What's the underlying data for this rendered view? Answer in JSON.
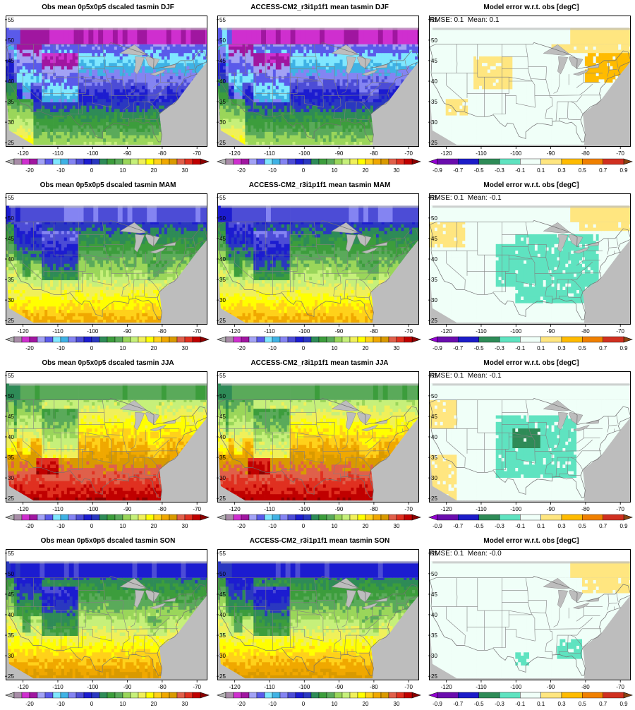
{
  "figure": {
    "rows": [
      {
        "season": "DJF",
        "obs_title": "Obs mean 0p5x0p5 dscaled tasmin DJF",
        "model_title": "ACCESS-CM2_r3i1p1f1 mean tasmin DJF",
        "error_title": "Model error w.r.t. obs [degC]",
        "rmse_label": "RMSE: 0.1",
        "mean_label": "Mean: 0.1"
      },
      {
        "season": "MAM",
        "obs_title": "Obs mean 0p5x0p5 dscaled tasmin MAM",
        "model_title": "ACCESS-CM2_r3i1p1f1 mean tasmin MAM",
        "error_title": "Model error w.r.t. obs [degC]",
        "rmse_label": "RMSE: 0.1",
        "mean_label": "Mean: -0.1"
      },
      {
        "season": "JJA",
        "obs_title": "Obs mean 0p5x0p5 dscaled tasmin JJA",
        "model_title": "ACCESS-CM2_r3i1p1f1 mean tasmin JJA",
        "error_title": "Model error w.r.t. obs [degC]",
        "rmse_label": "RMSE: 0.1",
        "mean_label": "Mean: -0.1"
      },
      {
        "season": "SON",
        "obs_title": "Obs mean 0p5x0p5 dscaled tasmin SON",
        "model_title": "ACCESS-CM2_r3i1p1f1 mean tasmin SON",
        "error_title": "Model error w.r.t. obs [degC]",
        "rmse_label": "RMSE: 0.1",
        "mean_label": "Mean: -0.0"
      }
    ],
    "map_axes": {
      "lon_ticks": [
        "-120",
        "-110",
        "-100",
        "-90",
        "-80",
        "-70"
      ],
      "lat_ticks": [
        "25",
        "30",
        "35",
        "40",
        "45",
        "50",
        "55"
      ]
    },
    "temp_colorbar": {
      "tick_labels": [
        "-20",
        "-10",
        "0",
        "10",
        "20",
        "30"
      ],
      "colors": [
        "#b5b5b5",
        "#a78ca7",
        "#cf2fcf",
        "#a016a0",
        "#a2a2f5",
        "#5a5aea",
        "#7fe7ff",
        "#3fb2e5",
        "#8484f2",
        "#4c4cd6",
        "#1c1cd0",
        "#2a38c0",
        "#2e8b57",
        "#3c9d3c",
        "#5aaa5a",
        "#9ad65a",
        "#c6f07a",
        "#f0f05a",
        "#ffff00",
        "#ffd11a",
        "#f0a800",
        "#d99a00",
        "#e0604a",
        "#e03020",
        "#c00000",
        "#8b0000"
      ]
    },
    "error_colorbar": {
      "tick_labels": [
        "-0.9",
        "-0.7",
        "-0.5",
        "-0.3",
        "-0.1",
        "0.1",
        "0.3",
        "0.5",
        "0.7",
        "0.9"
      ],
      "colors": [
        "#9400d3",
        "#6a0dad",
        "#1c1cc8",
        "#2e8b57",
        "#5fe3c0",
        "#f0fff8",
        "#ffe680",
        "#ffbb00",
        "#f08000",
        "#d03020",
        "#8b4513"
      ]
    },
    "colors": {
      "ocean": "#bdbdbd",
      "frame": "#000000",
      "border": "#808080"
    }
  }
}
